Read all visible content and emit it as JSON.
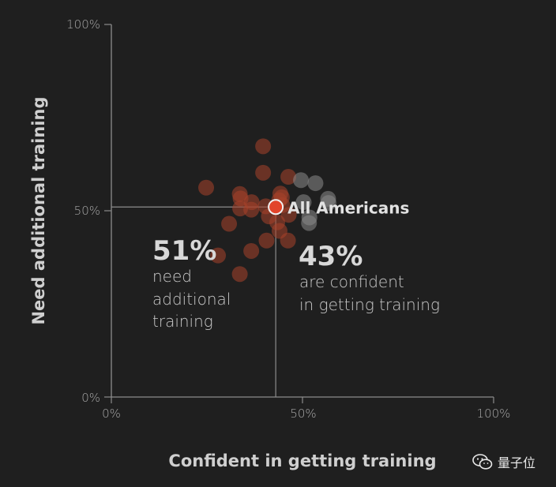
{
  "chart_data": {
    "type": "scatter",
    "xlabel": "Confident in getting training",
    "ylabel": "Need additional training",
    "xlim": [
      0,
      100
    ],
    "ylim": [
      0,
      100
    ],
    "x_ticks": [
      "0%",
      "50%",
      "100%"
    ],
    "y_ticks": [
      "0%",
      "50%",
      "100%"
    ],
    "grid": false,
    "points": [
      {
        "x": 24.8,
        "y": 56.2,
        "group": "red"
      },
      {
        "x": 27.9,
        "y": 38.0,
        "group": "red"
      },
      {
        "x": 30.8,
        "y": 46.5,
        "group": "red"
      },
      {
        "x": 33.6,
        "y": 54.5,
        "group": "red"
      },
      {
        "x": 33.8,
        "y": 53.3,
        "group": "red"
      },
      {
        "x": 33.7,
        "y": 50.6,
        "group": "red"
      },
      {
        "x": 33.6,
        "y": 33.0,
        "group": "red"
      },
      {
        "x": 36.7,
        "y": 52.3,
        "group": "red"
      },
      {
        "x": 36.6,
        "y": 50.3,
        "group": "red"
      },
      {
        "x": 36.6,
        "y": 39.2,
        "group": "red"
      },
      {
        "x": 39.7,
        "y": 67.3,
        "group": "red"
      },
      {
        "x": 39.7,
        "y": 60.2,
        "group": "red"
      },
      {
        "x": 40.4,
        "y": 51.2,
        "group": "red"
      },
      {
        "x": 41.2,
        "y": 48.5,
        "group": "red"
      },
      {
        "x": 40.6,
        "y": 42.0,
        "group": "red"
      },
      {
        "x": 43.4,
        "y": 46.9,
        "group": "red"
      },
      {
        "x": 43.9,
        "y": 52.8,
        "group": "red"
      },
      {
        "x": 44.2,
        "y": 54.6,
        "group": "red"
      },
      {
        "x": 44.6,
        "y": 53.6,
        "group": "red"
      },
      {
        "x": 44.7,
        "y": 51.5,
        "group": "red"
      },
      {
        "x": 44.0,
        "y": 44.6,
        "group": "red"
      },
      {
        "x": 46.3,
        "y": 59.1,
        "group": "red"
      },
      {
        "x": 46.4,
        "y": 48.9,
        "group": "red"
      },
      {
        "x": 46.2,
        "y": 42.0,
        "group": "red"
      },
      {
        "x": 49.6,
        "y": 58.2,
        "group": "gray"
      },
      {
        "x": 53.4,
        "y": 57.4,
        "group": "gray"
      },
      {
        "x": 50.3,
        "y": 52.3,
        "group": "gray"
      },
      {
        "x": 51.8,
        "y": 48.2,
        "group": "gray"
      },
      {
        "x": 51.7,
        "y": 46.7,
        "group": "gray"
      },
      {
        "x": 56.7,
        "y": 53.2,
        "group": "gray"
      },
      {
        "x": 56.8,
        "y": 52.1,
        "group": "gray"
      }
    ],
    "highlight": {
      "label": "All Americans",
      "x": 43,
      "y": 51
    },
    "annotations": [
      {
        "value": "51%",
        "lines": [
          "need",
          "additional",
          "training"
        ]
      },
      {
        "value": "43%",
        "lines": [
          "are confident",
          "in getting training"
        ]
      }
    ],
    "colors": {
      "red_points": "#a8412a",
      "gray_points": "#8a8a8a",
      "highlight_fill": "#e2442a",
      "highlight_stroke": "#f0f0f0",
      "axis": "#8c8c8c",
      "background": "#1f1f1f"
    }
  },
  "watermark": {
    "icon": "wechat-icon",
    "text": "量子位"
  }
}
